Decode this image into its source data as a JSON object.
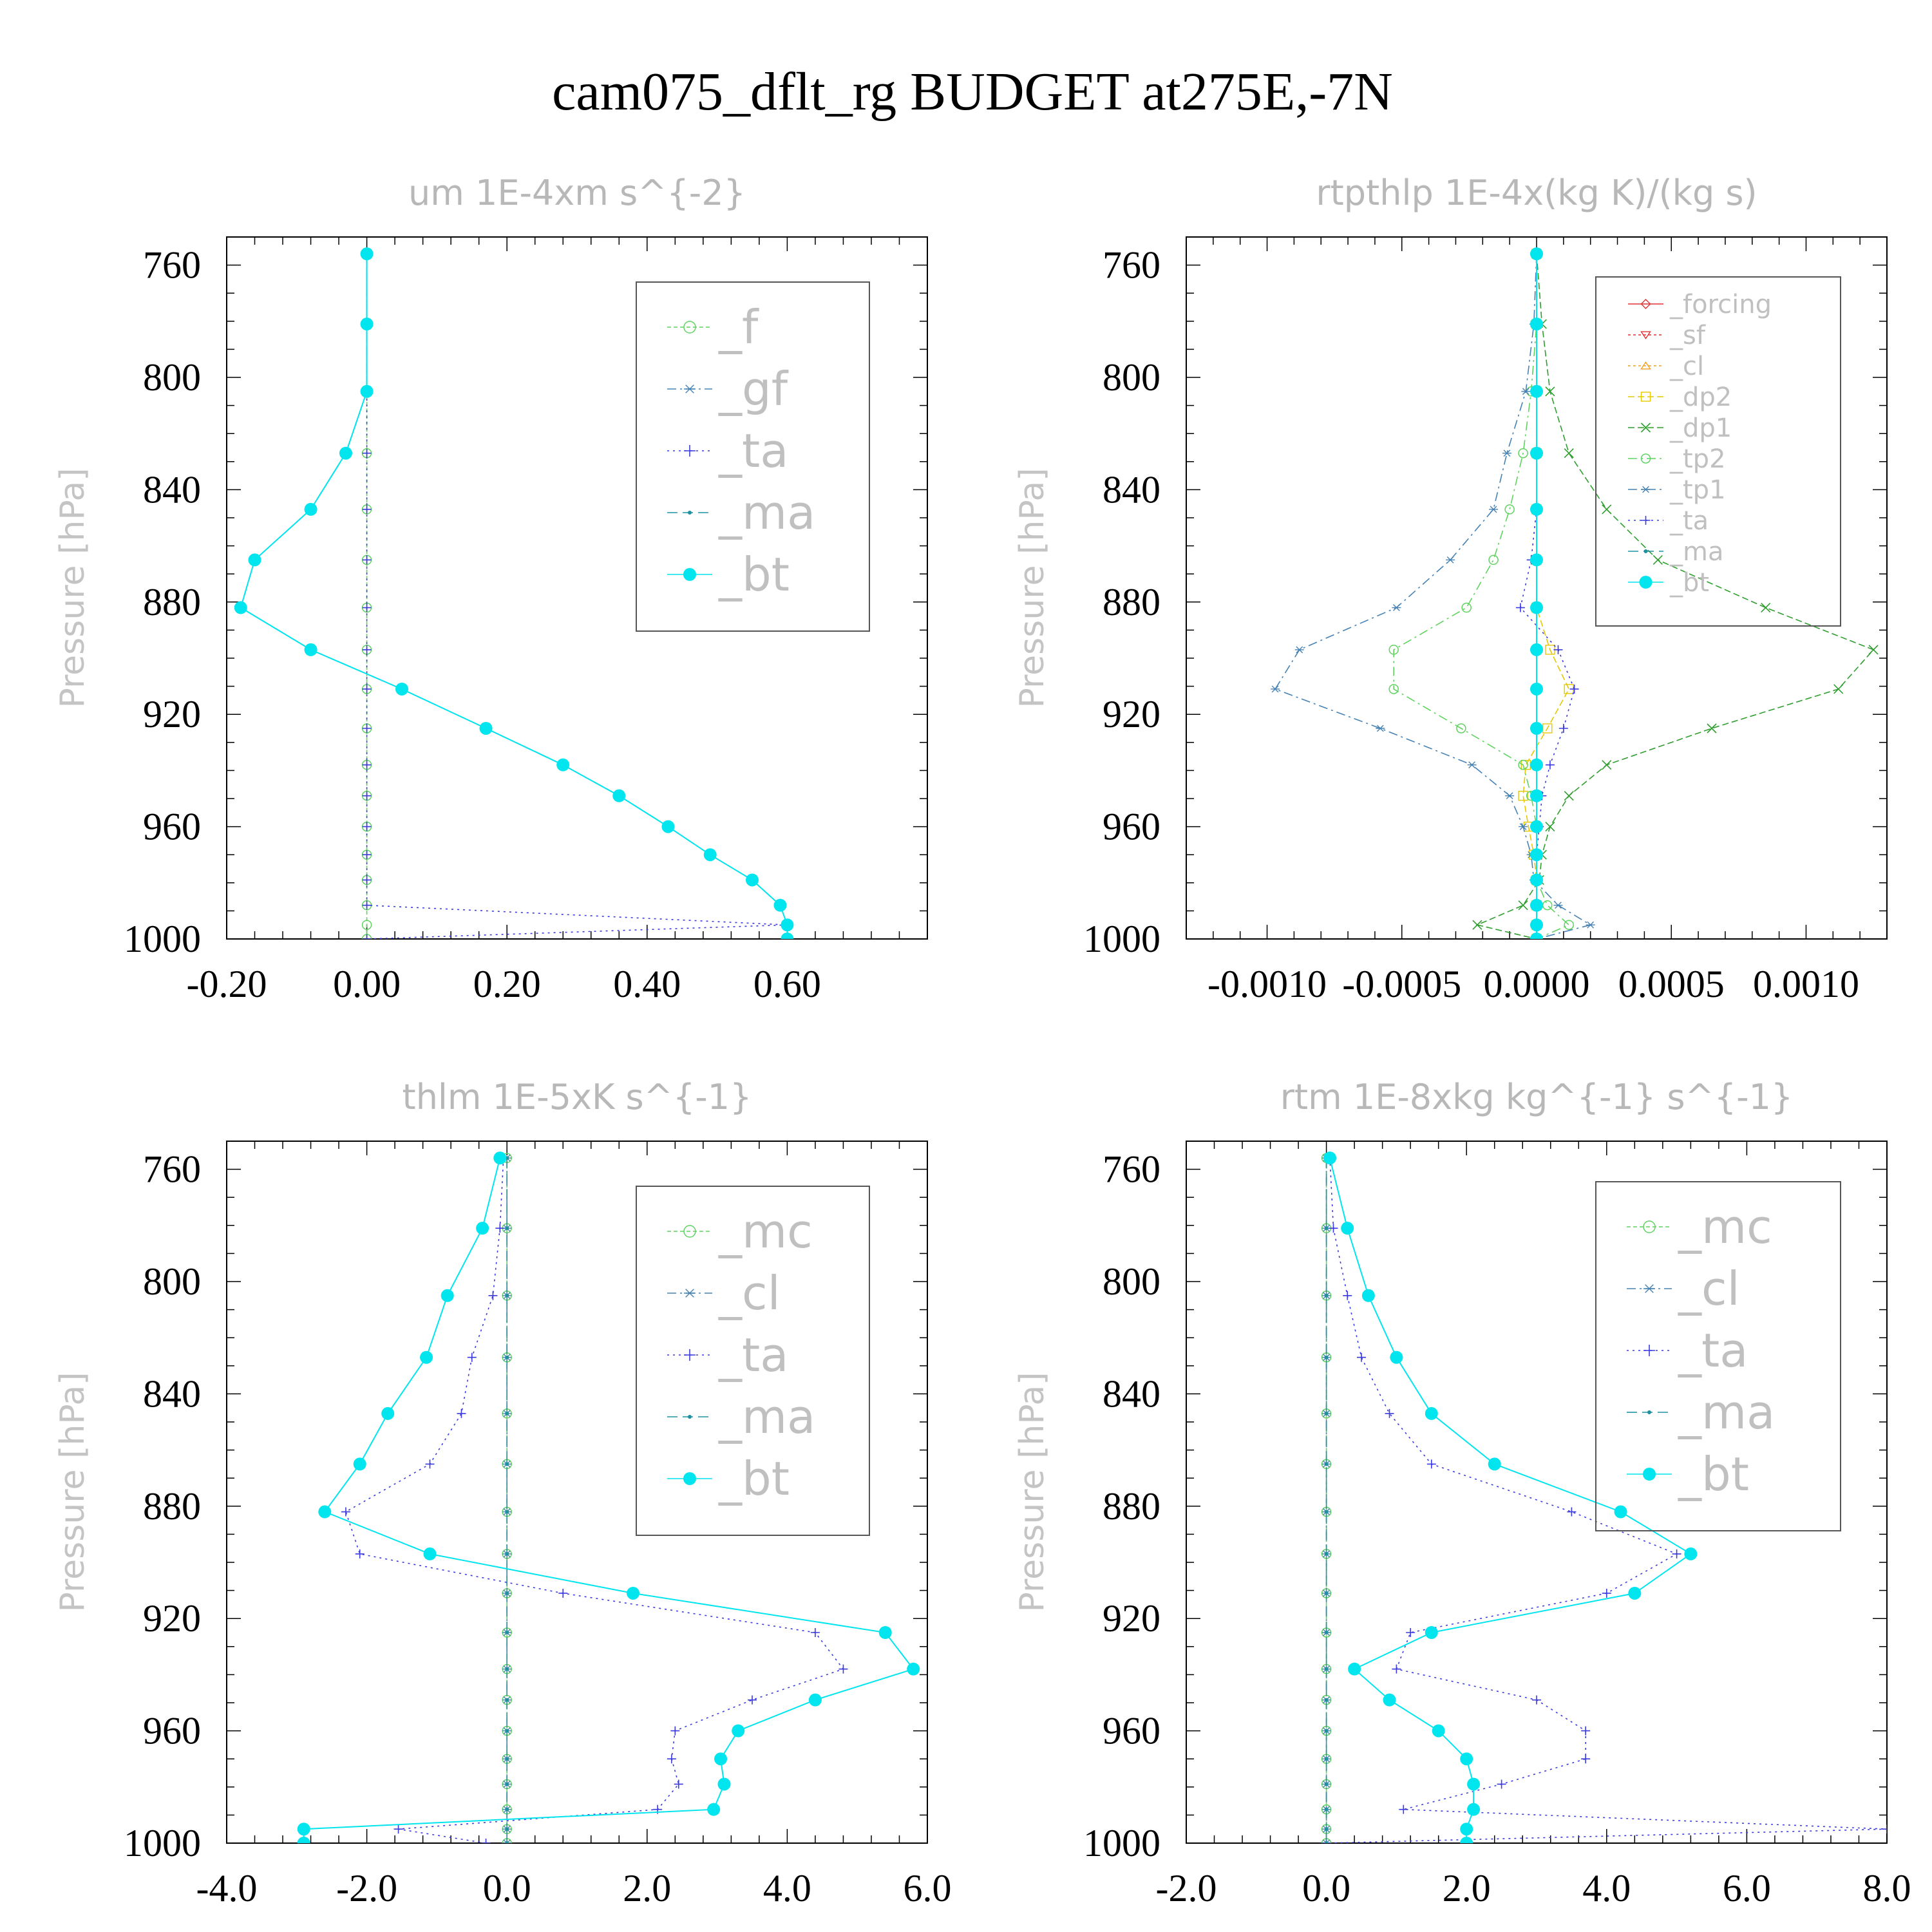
{
  "figure": {
    "title": "cam075_dflt_rg  BUDGET at275E,-7N",
    "colors": {
      "cyan": "#00e5ee",
      "teal": "#1e90a0",
      "steel": "#4682b4",
      "blue": "#3a3adf",
      "green": "#2e9e2e",
      "lightgreen": "#5fd35f",
      "red": "#e03030",
      "orange": "#f0a020",
      "yellow": "#e6c800"
    }
  },
  "chart_data": [
    {
      "type": "line",
      "title": "um  1E-4xm s^{-2}",
      "ylabel": "Pressure [hPa]",
      "xlim": [
        -0.2,
        0.8
      ],
      "ylim": [
        750,
        1000
      ],
      "yinverted": true,
      "x_ticks": [
        -0.2,
        0.0,
        0.2,
        0.4,
        0.6
      ],
      "x_tick_labels": [
        "-0.20",
        "0.00",
        "0.20",
        "0.40",
        "0.60"
      ],
      "y_ticks": [
        760,
        800,
        840,
        880,
        920,
        960,
        1000
      ],
      "y_tick_labels": [
        "760",
        "800",
        "840",
        "880",
        "920",
        "960",
        "1000"
      ],
      "legend": [
        "_f",
        "_gf",
        "_ta",
        "_ma",
        "_bt"
      ],
      "levels": [
        756,
        781,
        805,
        827,
        847,
        865,
        882,
        897,
        911,
        925,
        938,
        949,
        960,
        970,
        979,
        988,
        995,
        1000
      ],
      "series": [
        {
          "name": "_f",
          "marker": "circle-open",
          "color": "lightgreen",
          "dash": "6,4",
          "values": [
            0,
            0,
            0,
            0,
            0,
            0,
            0,
            0,
            0,
            0,
            0,
            0,
            0,
            0,
            0,
            0,
            0,
            0
          ]
        },
        {
          "name": "_gf",
          "marker": "star",
          "color": "steel",
          "dash": "14,6,3,6",
          "values": [
            0,
            0,
            0,
            -0.03,
            -0.08,
            -0.16,
            -0.18,
            -0.08,
            0.05,
            0.17,
            0.28,
            0.36,
            0.43,
            0.49,
            0.55,
            0.59,
            0.6,
            0.6
          ]
        },
        {
          "name": "_ta",
          "marker": "plus",
          "color": "blue",
          "dash": "3,6",
          "values": [
            0,
            0,
            0,
            0,
            0,
            0,
            0,
            0,
            0,
            0,
            0,
            0,
            0,
            0,
            0,
            0,
            0.6,
            0
          ]
        },
        {
          "name": "_ma",
          "marker": "dot",
          "color": "teal",
          "dash": "16,8",
          "values": [
            0,
            0,
            0,
            -0.03,
            -0.08,
            -0.16,
            -0.18,
            -0.08,
            0.05,
            0.17,
            0.28,
            0.36,
            0.43,
            0.49,
            0.55,
            0.59,
            0.6,
            0.6
          ]
        },
        {
          "name": "_bt",
          "marker": "dot-big",
          "color": "cyan",
          "dash": "",
          "values": [
            0,
            0,
            0,
            -0.03,
            -0.08,
            -0.16,
            -0.18,
            -0.08,
            0.05,
            0.17,
            0.28,
            0.36,
            0.43,
            0.49,
            0.55,
            0.59,
            0.6,
            0.6
          ]
        }
      ]
    },
    {
      "type": "line",
      "title": "rtpthlp  1E-4x(kg K)/(kg s)",
      "ylabel": "Pressure [hPa]",
      "xlim": [
        -0.0013,
        0.0013
      ],
      "ylim": [
        750,
        1000
      ],
      "yinverted": true,
      "x_ticks": [
        -0.001,
        -0.0005,
        0.0,
        0.0005,
        0.001
      ],
      "x_tick_labels": [
        "-0.0010",
        "-0.0005",
        "0.0000",
        "0.0005",
        "0.0010"
      ],
      "y_ticks": [
        760,
        800,
        840,
        880,
        920,
        960,
        1000
      ],
      "y_tick_labels": [
        "760",
        "800",
        "840",
        "880",
        "920",
        "960",
        "1000"
      ],
      "legend": [
        "_forcing",
        "_sf",
        "_cl",
        "_dp2",
        "_dp1",
        "_tp2",
        "_tp1",
        "_ta",
        "_ma",
        "_bt"
      ],
      "levels": [
        756,
        781,
        805,
        827,
        847,
        865,
        882,
        897,
        911,
        925,
        938,
        949,
        960,
        970,
        979,
        988,
        995,
        1000
      ],
      "series": [
        {
          "name": "_forcing",
          "marker": "diamond",
          "color": "red",
          "dash": "",
          "values": [
            0,
            0,
            0,
            0,
            0,
            0,
            0,
            0,
            0,
            0,
            0,
            0,
            0,
            0,
            0,
            0,
            0,
            0
          ]
        },
        {
          "name": "_sf",
          "marker": "triangle-down",
          "color": "red",
          "dash": "4,4",
          "values": [
            0,
            0,
            0,
            0,
            0,
            0,
            0,
            0,
            0,
            0,
            0,
            0,
            0,
            0,
            0,
            0,
            0,
            0
          ]
        },
        {
          "name": "_cl",
          "marker": "triangle-up",
          "color": "orange",
          "dash": "4,4",
          "values": [
            0,
            0,
            0,
            0,
            0,
            0,
            0,
            0,
            0,
            0,
            0,
            0,
            0,
            0,
            0,
            0,
            0,
            0
          ]
        },
        {
          "name": "_dp2",
          "marker": "square",
          "color": "yellow",
          "dash": "10,5",
          "values": [
            0,
            0,
            0,
            0,
            0,
            0,
            0,
            5e-05,
            0.00012,
            4e-05,
            -4e-05,
            -5e-05,
            -3e-05,
            -1e-05,
            0,
            0,
            0,
            0
          ]
        },
        {
          "name": "_dp1",
          "marker": "cross",
          "color": "green",
          "dash": "10,5",
          "values": [
            0,
            2e-05,
            5e-05,
            0.00012,
            0.00026,
            0.00045,
            0.00085,
            0.00125,
            0.00112,
            0.00065,
            0.00026,
            0.00012,
            5e-05,
            2e-05,
            1e-05,
            -5e-05,
            -0.00022,
            0
          ]
        },
        {
          "name": "_tp2",
          "marker": "circle-open",
          "color": "lightgreen",
          "dash": "14,6,3,6",
          "values": [
            0,
            0,
            -2e-05,
            -5e-05,
            -0.0001,
            -0.00016,
            -0.00026,
            -0.00053,
            -0.00053,
            -0.00028,
            -5e-05,
            -2e-05,
            0,
            0,
            0,
            4e-05,
            0.00012,
            0
          ]
        },
        {
          "name": "_tp1",
          "marker": "star",
          "color": "steel",
          "dash": "14,6,3,6",
          "values": [
            0,
            -1e-05,
            -4e-05,
            -0.00011,
            -0.00016,
            -0.00032,
            -0.00052,
            -0.00088,
            -0.00097,
            -0.00058,
            -0.00024,
            -0.0001,
            -5e-05,
            -2e-05,
            -1e-05,
            8e-05,
            0.0002,
            0
          ]
        },
        {
          "name": "_ta",
          "marker": "plus",
          "color": "blue",
          "dash": "3,6",
          "values": [
            0,
            0,
            0,
            0,
            0,
            -2e-05,
            -6e-05,
            8e-05,
            0.00014,
            0.0001,
            5e-05,
            2e-05,
            1e-05,
            0,
            0,
            0,
            0,
            0
          ]
        },
        {
          "name": "_ma",
          "marker": "dot",
          "color": "teal",
          "dash": "16,8",
          "values": [
            0,
            0,
            0,
            0,
            0,
            0,
            0,
            0,
            0,
            0,
            0,
            0,
            0,
            0,
            0,
            0,
            0,
            0
          ]
        },
        {
          "name": "_bt",
          "marker": "dot-big",
          "color": "cyan",
          "dash": "",
          "values": [
            0,
            0,
            0,
            0,
            0,
            0,
            0,
            0,
            0,
            0,
            0,
            0,
            0,
            0,
            0,
            0,
            0,
            0
          ]
        }
      ]
    },
    {
      "type": "line",
      "title": "thlm  1E-5xK s^{-1}",
      "ylabel": "Pressure [hPa]",
      "xlim": [
        -4.0,
        6.0
      ],
      "ylim": [
        750,
        1000
      ],
      "yinverted": true,
      "x_ticks": [
        -4,
        -2,
        0,
        2,
        4,
        6
      ],
      "x_tick_labels": [
        "-4.0",
        "-2.0",
        "0.0",
        "2.0",
        "4.0",
        "6.0"
      ],
      "y_ticks": [
        760,
        800,
        840,
        880,
        920,
        960,
        1000
      ],
      "y_tick_labels": [
        "760",
        "800",
        "840",
        "880",
        "920",
        "960",
        "1000"
      ],
      "legend": [
        "_mc",
        "_cl",
        "_ta",
        "_ma",
        "_bt"
      ],
      "levels": [
        756,
        781,
        805,
        827,
        847,
        865,
        882,
        897,
        911,
        925,
        938,
        949,
        960,
        970,
        979,
        988,
        995,
        1000
      ],
      "series": [
        {
          "name": "_mc",
          "marker": "circle-open",
          "color": "lightgreen",
          "dash": "6,4",
          "values": [
            0,
            0,
            0,
            0,
            0,
            0,
            0,
            0,
            0,
            0,
            0,
            0,
            0,
            0,
            0,
            0,
            0,
            0
          ]
        },
        {
          "name": "_cl",
          "marker": "star",
          "color": "steel",
          "dash": "14,6,3,6",
          "values": [
            0,
            0,
            0,
            0,
            0,
            0,
            0,
            0,
            0,
            0,
            0,
            0,
            0,
            0,
            0,
            0,
            0,
            0
          ]
        },
        {
          "name": "_ta",
          "marker": "plus",
          "color": "blue",
          "dash": "3,6",
          "values": [
            -0.05,
            -0.1,
            -0.2,
            -0.5,
            -0.65,
            -1.1,
            -2.3,
            -2.1,
            0.8,
            4.4,
            4.8,
            3.5,
            2.4,
            2.35,
            2.45,
            2.15,
            -1.55,
            -0.3
          ]
        },
        {
          "name": "_ma",
          "marker": "dot",
          "color": "teal",
          "dash": "16,8",
          "values": [
            0,
            0,
            0,
            0,
            0,
            0,
            0,
            0,
            0,
            0,
            0,
            0,
            0,
            0,
            0,
            0,
            0,
            0
          ]
        },
        {
          "name": "_bt",
          "marker": "dot-big",
          "color": "cyan",
          "dash": "",
          "values": [
            -0.1,
            -0.35,
            -0.85,
            -1.15,
            -1.7,
            -2.1,
            -2.6,
            -1.1,
            1.8,
            5.4,
            5.8,
            4.4,
            3.3,
            3.05,
            3.1,
            2.95,
            -2.9,
            -2.9
          ]
        }
      ]
    },
    {
      "type": "line",
      "title": "rtm  1E-8xkg kg^{-1} s^{-1}",
      "ylabel": "Pressure [hPa]",
      "xlim": [
        -2.0,
        8.0
      ],
      "ylim": [
        750,
        1000
      ],
      "yinverted": true,
      "x_ticks": [
        -2,
        0,
        2,
        4,
        6,
        8
      ],
      "x_tick_labels": [
        "-2.0",
        "0.0",
        "2.0",
        "4.0",
        "6.0",
        "8.0"
      ],
      "y_ticks": [
        760,
        800,
        840,
        880,
        920,
        960,
        1000
      ],
      "y_tick_labels": [
        "760",
        "800",
        "840",
        "880",
        "920",
        "960",
        "1000"
      ],
      "legend": [
        "_mc",
        "_cl",
        "_ta",
        "_ma",
        "_bt"
      ],
      "levels": [
        756,
        781,
        805,
        827,
        847,
        865,
        882,
        897,
        911,
        925,
        938,
        949,
        960,
        970,
        979,
        988,
        995,
        1000
      ],
      "series": [
        {
          "name": "_mc",
          "marker": "circle-open",
          "color": "lightgreen",
          "dash": "6,4",
          "values": [
            0,
            0,
            0,
            0,
            0,
            0,
            0,
            0,
            0,
            0,
            0,
            0,
            0,
            0,
            0,
            0,
            0,
            0
          ]
        },
        {
          "name": "_cl",
          "marker": "star",
          "color": "steel",
          "dash": "14,6,3,6",
          "values": [
            0,
            0,
            0,
            0,
            0,
            0,
            0,
            0,
            0,
            0,
            0,
            0,
            0,
            0,
            0,
            0,
            0,
            0
          ]
        },
        {
          "name": "_ta",
          "marker": "plus",
          "color": "blue",
          "dash": "3,6",
          "values": [
            0.05,
            0.1,
            0.3,
            0.5,
            0.9,
            1.5,
            3.5,
            5.0,
            4.0,
            1.2,
            1.0,
            3.0,
            3.7,
            3.7,
            2.5,
            1.1,
            8.0,
            0.0
          ]
        },
        {
          "name": "_ma",
          "marker": "dot",
          "color": "teal",
          "dash": "16,8",
          "values": [
            0,
            0,
            0,
            0,
            0,
            0,
            0,
            0,
            0,
            0,
            0,
            0,
            0,
            0,
            0,
            0,
            0,
            0
          ]
        },
        {
          "name": "_bt",
          "marker": "dot-big",
          "color": "cyan",
          "dash": "",
          "values": [
            0.05,
            0.3,
            0.6,
            1.0,
            1.5,
            2.4,
            4.2,
            5.2,
            4.4,
            1.5,
            0.4,
            0.9,
            1.6,
            2.0,
            2.1,
            2.1,
            2.0,
            2.0
          ]
        }
      ]
    }
  ]
}
